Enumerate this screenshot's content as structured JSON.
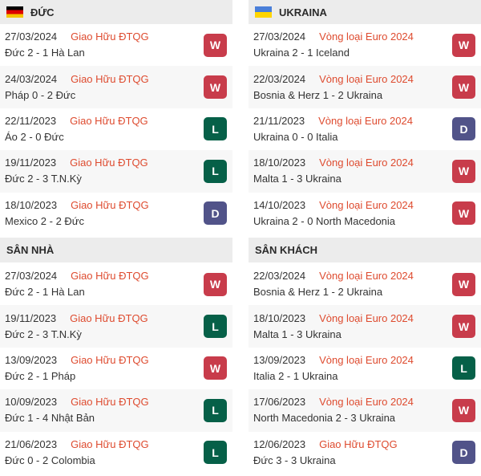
{
  "colors": {
    "header_bg": "#ececec",
    "stripe_bg": "#f7f7f7",
    "date_text": "#333333",
    "competition_text": "#de4b2f",
    "result_text": "#333333"
  },
  "outcome_colors": {
    "W": "#c83c4b",
    "L": "#066048",
    "D": "#515389"
  },
  "flags": {
    "germany": [
      "#000000",
      "#dd0000",
      "#f5c400"
    ],
    "ukraine": [
      "#4a7fd9",
      "#ffd500"
    ]
  },
  "columns": [
    {
      "team": "ĐỨC",
      "flag": "germany",
      "recent": {
        "rows": [
          {
            "date": "27/03/2024",
            "competition": "Giao Hữu ĐTQG",
            "result": "Đức 2 - 1 Hà Lan",
            "outcome": "W"
          },
          {
            "date": "24/03/2024",
            "competition": "Giao Hữu ĐTQG",
            "result": "Pháp 0 - 2 Đức",
            "outcome": "W"
          },
          {
            "date": "22/11/2023",
            "competition": "Giao Hữu ĐTQG",
            "result": "Áo 2 - 0 Đức",
            "outcome": "L"
          },
          {
            "date": "19/11/2023",
            "competition": "Giao Hữu ĐTQG",
            "result": "Đức 2 - 3 T.N.Kỳ",
            "outcome": "L"
          },
          {
            "date": "18/10/2023",
            "competition": "Giao Hữu ĐTQG",
            "result": "Mexico 2 - 2 Đức",
            "outcome": "D"
          }
        ]
      },
      "section": {
        "title": "SÂN NHÀ",
        "rows": [
          {
            "date": "27/03/2024",
            "competition": "Giao Hữu ĐTQG",
            "result": "Đức 2 - 1 Hà Lan",
            "outcome": "W"
          },
          {
            "date": "19/11/2023",
            "competition": "Giao Hữu ĐTQG",
            "result": "Đức 2 - 3 T.N.Kỳ",
            "outcome": "L"
          },
          {
            "date": "13/09/2023",
            "competition": "Giao Hữu ĐTQG",
            "result": "Đức 2 - 1 Pháp",
            "outcome": "W"
          },
          {
            "date": "10/09/2023",
            "competition": "Giao Hữu ĐTQG",
            "result": "Đức 1 - 4 Nhật Bản",
            "outcome": "L"
          },
          {
            "date": "21/06/2023",
            "competition": "Giao Hữu ĐTQG",
            "result": "Đức 0 - 2 Colombia",
            "outcome": "L"
          }
        ]
      }
    },
    {
      "team": "UKRAINA",
      "flag": "ukraine",
      "recent": {
        "rows": [
          {
            "date": "27/03/2024",
            "competition": "Vòng loại Euro 2024",
            "result": "Ukraina 2 - 1 Iceland",
            "outcome": "W"
          },
          {
            "date": "22/03/2024",
            "competition": "Vòng loại Euro 2024",
            "result": "Bosnia & Herz 1 - 2 Ukraina",
            "outcome": "W"
          },
          {
            "date": "21/11/2023",
            "competition": "Vòng loại Euro 2024",
            "result": "Ukraina 0 - 0 Italia",
            "outcome": "D"
          },
          {
            "date": "18/10/2023",
            "competition": "Vòng loại Euro 2024",
            "result": "Malta 1 - 3 Ukraina",
            "outcome": "W"
          },
          {
            "date": "14/10/2023",
            "competition": "Vòng loại Euro 2024",
            "result": "Ukraina 2 - 0 North Macedonia",
            "outcome": "W"
          }
        ]
      },
      "section": {
        "title": "SÂN KHÁCH",
        "rows": [
          {
            "date": "22/03/2024",
            "competition": "Vòng loại Euro 2024",
            "result": "Bosnia & Herz 1 - 2 Ukraina",
            "outcome": "W"
          },
          {
            "date": "18/10/2023",
            "competition": "Vòng loại Euro 2024",
            "result": "Malta 1 - 3 Ukraina",
            "outcome": "W"
          },
          {
            "date": "13/09/2023",
            "competition": "Vòng loại Euro 2024",
            "result": "Italia 2 - 1 Ukraina",
            "outcome": "L"
          },
          {
            "date": "17/06/2023",
            "competition": "Vòng loại Euro 2024",
            "result": "North Macedonia 2 - 3 Ukraina",
            "outcome": "W"
          },
          {
            "date": "12/06/2023",
            "competition": "Giao Hữu ĐTQG",
            "result": "Đức 3 - 3 Ukraina",
            "outcome": "D"
          }
        ]
      }
    }
  ]
}
